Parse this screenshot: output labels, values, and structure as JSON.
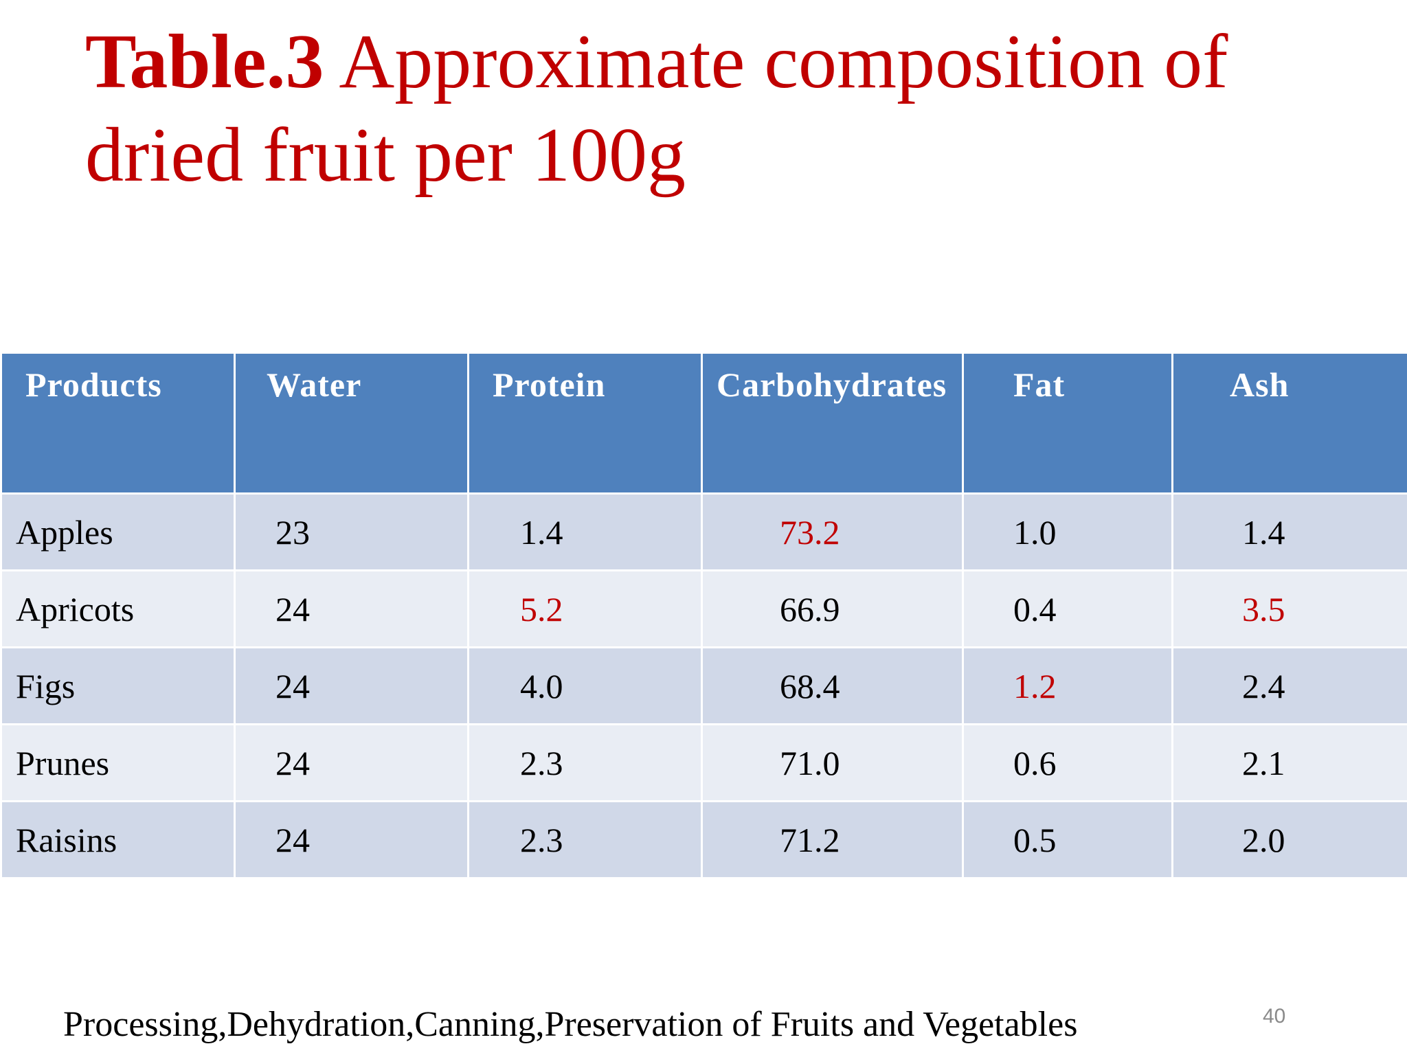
{
  "title": {
    "bold_part": "Table.3",
    "rest": " Approximate composition of dried fruit per 100g"
  },
  "table": {
    "headers": [
      "Products",
      "Water",
      "Protein",
      "Carbohydrates",
      "Fat",
      "Ash"
    ],
    "rows": [
      [
        "Apples",
        "23",
        "1.4",
        "73.2",
        "1.0",
        "1.4"
      ],
      [
        "Apricots",
        "24",
        "5.2",
        "66.9",
        "0.4",
        "3.5"
      ],
      [
        "Figs",
        "24",
        "4.0",
        "68.4",
        "1.2",
        "2.4"
      ],
      [
        "Prunes",
        "24",
        "2.3",
        "71.0",
        "0.6",
        "2.1"
      ],
      [
        "Raisins",
        "24",
        "2.3",
        "71.2",
        "0.5",
        "2.0"
      ]
    ],
    "highlighted": [
      [
        0,
        3
      ],
      [
        1,
        2
      ],
      [
        1,
        5
      ],
      [
        2,
        4
      ]
    ],
    "colors": {
      "header_bg": "#4f81bd",
      "row_odd": "#d0d8e8",
      "row_even": "#e9edf4",
      "highlight_text": "#c00000"
    }
  },
  "footer": "Processing,Dehydration,Canning,Preservation of  Fruits and Vegetables",
  "page_number": "40"
}
